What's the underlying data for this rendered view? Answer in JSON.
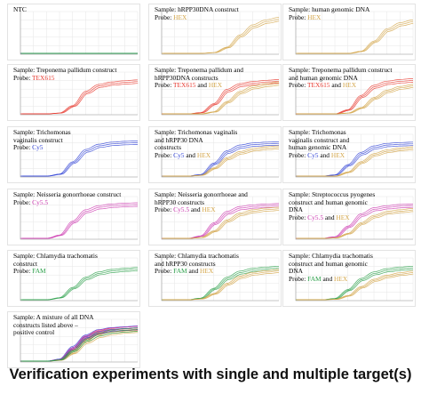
{
  "caption": "Verification experiments with single and multiple target(s)",
  "colors": {
    "TEX615": "#e8392f",
    "HEX": "#d4a64a",
    "Cy5": "#3344d6",
    "Cy5.5": "#cc3ab0",
    "FAM": "#2ca04a",
    "grid": "#e6e6e6",
    "axis": "#999999"
  },
  "chart_data": [
    {
      "type": "line",
      "sample_lines": [
        "NTC"
      ],
      "probes": [],
      "series": [
        {
          "color_key": "TEX615",
          "values": [
            0,
            0,
            0,
            0,
            0,
            0,
            0,
            0,
            0,
            0
          ]
        },
        {
          "color_key": "Cy5",
          "values": [
            0,
            0,
            0,
            0,
            0,
            0,
            0,
            0,
            0,
            0
          ]
        },
        {
          "color_key": "FAM",
          "values": [
            0,
            0,
            0,
            0,
            0,
            0,
            0,
            0,
            0,
            0
          ]
        }
      ]
    },
    {
      "type": "line",
      "sample_lines": [
        "Sample: hRPP30DNA construct"
      ],
      "probes": [
        {
          "name": "HEX",
          "color_key": "HEX"
        }
      ],
      "series": [
        {
          "color_key": "HEX",
          "values": [
            0,
            0,
            0,
            0,
            0.02,
            0.15,
            0.45,
            0.7,
            0.82,
            0.88
          ]
        }
      ]
    },
    {
      "type": "line",
      "sample_lines": [
        "Sample:  human genomic DNA"
      ],
      "probes": [
        {
          "name": "HEX",
          "color_key": "HEX"
        }
      ],
      "series": [
        {
          "color_key": "HEX",
          "values": [
            0,
            0,
            0,
            0,
            0,
            0.05,
            0.3,
            0.6,
            0.75,
            0.82
          ]
        }
      ]
    },
    {
      "type": "line",
      "sample_lines": [
        "Sample: Treponema pallidum construct"
      ],
      "probes": [
        {
          "name": "TEX615",
          "color_key": "TEX615"
        }
      ],
      "series": [
        {
          "color_key": "TEX615",
          "values": [
            0,
            0,
            0,
            0.02,
            0.2,
            0.55,
            0.72,
            0.78,
            0.81,
            0.83
          ]
        }
      ]
    },
    {
      "type": "line",
      "sample_lines": [
        "Sample: Treponema pallidum and",
        "hRPP30DNA constructs"
      ],
      "probes": [
        {
          "name": "TEX615",
          "color_key": "TEX615"
        },
        {
          "name": "HEX",
          "color_key": "HEX"
        }
      ],
      "series": [
        {
          "color_key": "TEX615",
          "values": [
            0,
            0,
            0,
            0.03,
            0.25,
            0.6,
            0.74,
            0.79,
            0.82,
            0.84
          ]
        },
        {
          "color_key": "HEX",
          "values": [
            0,
            0,
            0,
            0,
            0.05,
            0.3,
            0.55,
            0.68,
            0.74,
            0.78
          ]
        }
      ]
    },
    {
      "type": "line",
      "sample_lines": [
        "Sample: Treponema pallidum construct",
        "and human genomic DNA"
      ],
      "probes": [
        {
          "name": "TEX615",
          "color_key": "TEX615"
        },
        {
          "name": "HEX",
          "color_key": "HEX"
        }
      ],
      "series": [
        {
          "color_key": "TEX615",
          "values": [
            0,
            0,
            0,
            0,
            0.1,
            0.45,
            0.7,
            0.8,
            0.84,
            0.86
          ]
        },
        {
          "color_key": "HEX",
          "values": [
            0,
            0,
            0,
            0,
            0.02,
            0.15,
            0.4,
            0.58,
            0.67,
            0.72
          ]
        }
      ]
    },
    {
      "type": "line",
      "sample_lines": [
        "Sample: Trichomonas",
        "vaginalis construct"
      ],
      "probes": [
        {
          "name": "Cy5",
          "color_key": "Cy5"
        }
      ],
      "series": [
        {
          "color_key": "Cy5",
          "values": [
            0,
            0,
            0,
            0.05,
            0.35,
            0.65,
            0.78,
            0.83,
            0.85,
            0.86
          ]
        }
      ]
    },
    {
      "type": "line",
      "sample_lines": [
        "Sample: Trichomonas vaginalis",
        "and hRPP30 DNA",
        "constructs"
      ],
      "probes": [
        {
          "name": "Cy5",
          "color_key": "Cy5"
        },
        {
          "name": "HEX",
          "color_key": "HEX"
        }
      ],
      "series": [
        {
          "color_key": "Cy5",
          "values": [
            0,
            0,
            0,
            0.04,
            0.32,
            0.62,
            0.76,
            0.81,
            0.83,
            0.84
          ]
        },
        {
          "color_key": "HEX",
          "values": [
            0,
            0,
            0,
            0.02,
            0.2,
            0.45,
            0.6,
            0.68,
            0.72,
            0.74
          ]
        }
      ]
    },
    {
      "type": "line",
      "sample_lines": [
        "Sample: Trichomonas",
        "vaginalis construct and",
        "human genomic DNA"
      ],
      "probes": [
        {
          "name": "Cy5",
          "color_key": "Cy5"
        },
        {
          "name": "HEX",
          "color_key": "HEX"
        }
      ],
      "series": [
        {
          "color_key": "Cy5",
          "values": [
            0,
            0,
            0,
            0.03,
            0.28,
            0.58,
            0.74,
            0.8,
            0.82,
            0.83
          ]
        },
        {
          "color_key": "HEX",
          "values": [
            0,
            0,
            0,
            0,
            0.1,
            0.35,
            0.55,
            0.64,
            0.69,
            0.72
          ]
        }
      ]
    },
    {
      "type": "line",
      "sample_lines": [
        "Sample: Neisseria gonorrhoeae construct"
      ],
      "probes": [
        {
          "name": "Cy5.5",
          "color_key": "Cy5.5"
        }
      ],
      "series": [
        {
          "color_key": "Cy5.5",
          "values": [
            0,
            0,
            0,
            0.08,
            0.42,
            0.7,
            0.8,
            0.84,
            0.86,
            0.87
          ]
        }
      ]
    },
    {
      "type": "line",
      "sample_lines": [
        "Sample: Neisseria gonorrhoeae and",
        "hRPP30 constructs"
      ],
      "probes": [
        {
          "name": "Cy5.5",
          "color_key": "Cy5.5"
        },
        {
          "name": "HEX",
          "color_key": "HEX"
        }
      ],
      "series": [
        {
          "color_key": "Cy5.5",
          "values": [
            0,
            0,
            0,
            0.06,
            0.38,
            0.66,
            0.78,
            0.82,
            0.84,
            0.85
          ]
        },
        {
          "color_key": "HEX",
          "values": [
            0,
            0,
            0,
            0.02,
            0.18,
            0.45,
            0.62,
            0.7,
            0.74,
            0.76
          ]
        }
      ]
    },
    {
      "type": "line",
      "sample_lines": [
        "Sample: Streptococcus pyogenes",
        "construct and human genomic",
        "DNA"
      ],
      "probes": [
        {
          "name": "Cy5.5",
          "color_key": "Cy5.5"
        },
        {
          "name": "HEX",
          "color_key": "HEX"
        }
      ],
      "series": [
        {
          "color_key": "Cy5.5",
          "values": [
            0,
            0,
            0,
            0.04,
            0.3,
            0.6,
            0.75,
            0.8,
            0.83,
            0.84
          ]
        },
        {
          "color_key": "HEX",
          "values": [
            0,
            0,
            0,
            0.01,
            0.12,
            0.38,
            0.56,
            0.66,
            0.7,
            0.73
          ]
        }
      ]
    },
    {
      "type": "line",
      "sample_lines": [
        "Sample: Chlamydia trachomatis",
        "construct"
      ],
      "probes": [
        {
          "name": "FAM",
          "color_key": "FAM"
        }
      ],
      "series": [
        {
          "color_key": "FAM",
          "values": [
            0,
            0,
            0,
            0.05,
            0.3,
            0.55,
            0.68,
            0.74,
            0.77,
            0.79
          ]
        }
      ]
    },
    {
      "type": "line",
      "sample_lines": [
        "Sample: Chlamydia trachomatis",
        "and hRPP30 constructs"
      ],
      "probes": [
        {
          "name": "FAM",
          "color_key": "FAM"
        },
        {
          "name": "HEX",
          "color_key": "HEX"
        }
      ],
      "series": [
        {
          "color_key": "FAM",
          "values": [
            0,
            0,
            0,
            0.04,
            0.28,
            0.55,
            0.7,
            0.77,
            0.8,
            0.82
          ]
        },
        {
          "color_key": "HEX",
          "values": [
            0,
            0,
            0,
            0.02,
            0.15,
            0.4,
            0.58,
            0.67,
            0.71,
            0.74
          ]
        }
      ]
    },
    {
      "type": "line",
      "sample_lines": [
        "Sample: Chlamydia trachomatis",
        "construct and human genomic",
        "DNA"
      ],
      "probes": [
        {
          "name": "FAM",
          "color_key": "FAM"
        },
        {
          "name": "HEX",
          "color_key": "HEX"
        }
      ],
      "series": [
        {
          "color_key": "FAM",
          "values": [
            0,
            0,
            0,
            0.03,
            0.25,
            0.52,
            0.68,
            0.76,
            0.8,
            0.82
          ]
        },
        {
          "color_key": "HEX",
          "values": [
            0,
            0,
            0,
            0.01,
            0.1,
            0.32,
            0.5,
            0.6,
            0.66,
            0.7
          ]
        }
      ]
    },
    {
      "type": "line",
      "sample_lines": [
        "Sample: A mixture of all DNA",
        "constructs listed above –",
        "positive control"
      ],
      "probes": [],
      "series": [
        {
          "color_key": "TEX615",
          "values": [
            0,
            0,
            0,
            0.03,
            0.3,
            0.6,
            0.74,
            0.8,
            0.83,
            0.85
          ]
        },
        {
          "color_key": "HEX",
          "values": [
            0,
            0,
            0,
            0.02,
            0.2,
            0.48,
            0.64,
            0.72,
            0.76,
            0.78
          ]
        },
        {
          "color_key": "Cy5",
          "values": [
            0,
            0,
            0,
            0.05,
            0.36,
            0.64,
            0.77,
            0.82,
            0.84,
            0.86
          ]
        },
        {
          "color_key": "Cy5.5",
          "values": [
            0,
            0,
            0,
            0.04,
            0.33,
            0.62,
            0.76,
            0.81,
            0.83,
            0.85
          ]
        },
        {
          "color_key": "FAM",
          "values": [
            0,
            0,
            0,
            0.03,
            0.26,
            0.54,
            0.69,
            0.76,
            0.79,
            0.81
          ]
        }
      ]
    }
  ]
}
